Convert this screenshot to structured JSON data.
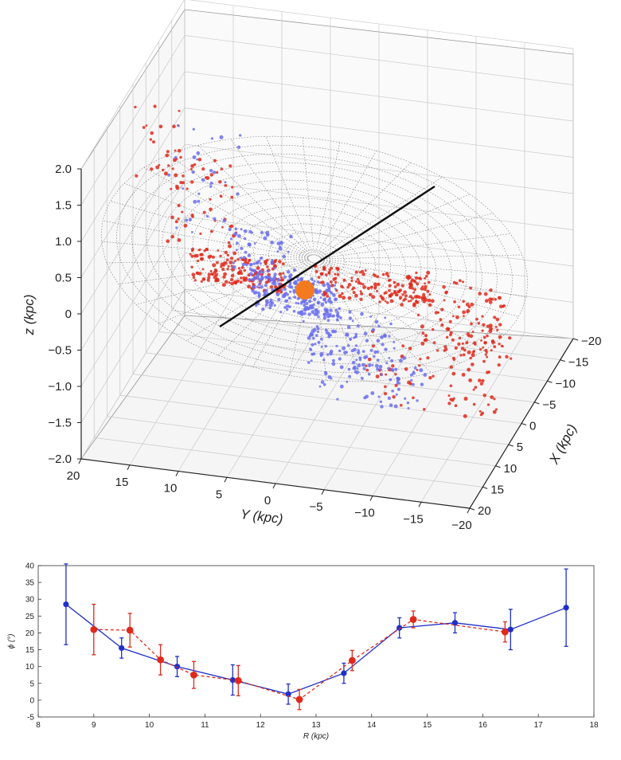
{
  "chart_data": [
    {
      "type": "scatter",
      "subtype": "3d",
      "xlabel": "X (kpc)",
      "ylabel": "Y (kpc)",
      "zlabel": "z (kpc)",
      "xlim": [
        -20,
        20
      ],
      "ylim": [
        -20,
        20
      ],
      "zlim": [
        -2.0,
        2.0
      ],
      "x_ticks": [
        "20",
        "15",
        "10",
        "5",
        "0",
        "−5",
        "−10",
        "−15",
        "−20"
      ],
      "y_ticks": [
        "20",
        "15",
        "10",
        "5",
        "0",
        "−5",
        "−10",
        "−15",
        "−20"
      ],
      "z_ticks": [
        "2.0",
        "1.5",
        "1.0",
        "0.5",
        "0",
        "−0.5",
        "−1.0",
        "−1.5",
        "−2.0"
      ],
      "grid": true,
      "series": [
        {
          "color": "#e0291b"
        },
        {
          "color": "#6a6ff0"
        }
      ],
      "sun_marker_color": "#f47a20",
      "model": "warped disk wireframe with line of nodes"
    },
    {
      "type": "line",
      "xlabel": "R (kpc)",
      "ylabel": "ϕ (°)",
      "xlim": [
        8,
        18
      ],
      "ylim": [
        -5,
        40
      ],
      "x_ticks": [
        "8",
        "9",
        "10",
        "11",
        "12",
        "13",
        "14",
        "15",
        "16",
        "17",
        "18"
      ],
      "y_ticks": [
        "-5",
        "0",
        "5",
        "10",
        "15",
        "20",
        "25",
        "30",
        "35",
        "40"
      ],
      "grid": false,
      "series": [
        {
          "color": "#1f2fc8",
          "style": "solid",
          "x": [
            8.5,
            9.5,
            10.5,
            11.5,
            12.5,
            13.5,
            14.5,
            15.5,
            16.5,
            17.5
          ],
          "y": [
            28.5,
            15.5,
            10,
            6,
            1.8,
            8,
            21.5,
            23,
            21,
            27.5
          ],
          "err": [
            12,
            3,
            3,
            4.5,
            3,
            3,
            3,
            3,
            6,
            11.5
          ]
        },
        {
          "color": "#e0291b",
          "style": "dashed",
          "x": [
            9.0,
            9.65,
            10.2,
            10.8,
            11.6,
            12.7,
            13.65,
            14.75,
            16.4
          ],
          "y": [
            21,
            20.8,
            12,
            7.5,
            5.8,
            0.2,
            11.8,
            24,
            20.3
          ],
          "err": [
            7.5,
            5,
            4.5,
            4,
            4.5,
            3,
            3,
            2.5,
            3
          ]
        }
      ]
    }
  ]
}
